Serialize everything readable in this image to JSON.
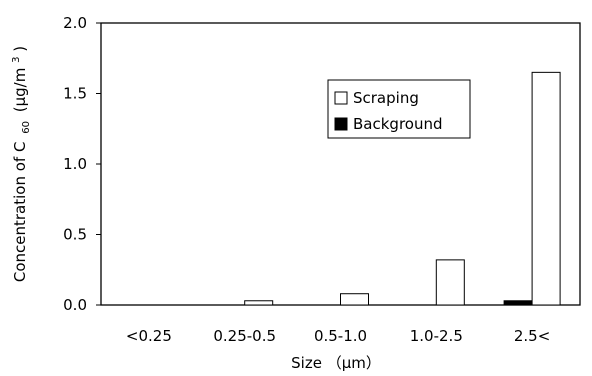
{
  "chart_data": {
    "type": "bar",
    "categories": [
      "<0.25",
      "0.25-0.5",
      "0.5-1.0",
      "1.0-2.5",
      "2.5<"
    ],
    "series": [
      {
        "name": "Background",
        "color": "#000000",
        "values": [
          0.0,
          0.0,
          0.0,
          0.0,
          0.03
        ]
      },
      {
        "name": "Scraping",
        "color": "#ffffff",
        "values": [
          0.0,
          0.03,
          0.08,
          0.32,
          1.65
        ]
      }
    ],
    "xlabel": "Size （μm）",
    "ylabel_parts": {
      "main": "Concentration of C",
      "sub": "60",
      "unit_open": "(μg/m",
      "sup": "3",
      "unit_close": ")"
    },
    "ylim": [
      0,
      2.0
    ],
    "yticks": [
      "0.0",
      "0.5",
      "1.0",
      "1.5",
      "2.0"
    ],
    "ytick_values": [
      0,
      0.5,
      1.0,
      1.5,
      2.0
    ],
    "grid": false,
    "legend": {
      "placement": "upper-center",
      "items": [
        "Scraping",
        "Background"
      ]
    }
  }
}
